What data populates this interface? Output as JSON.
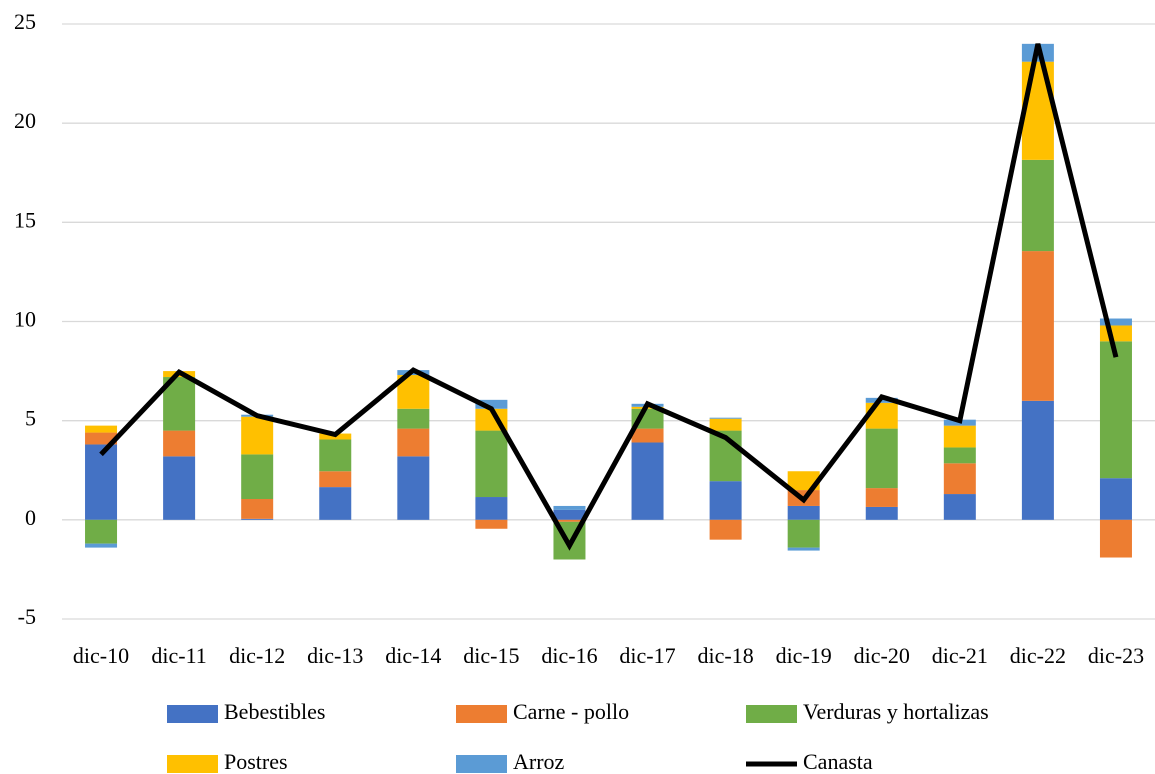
{
  "chart_data": {
    "type": "bar",
    "stacked": true,
    "grid": true,
    "categories": [
      "dic-10",
      "dic-11",
      "dic-12",
      "dic-13",
      "dic-14",
      "dic-15",
      "dic-16",
      "dic-17",
      "dic-18",
      "dic-19",
      "dic-20",
      "dic-21",
      "dic-22",
      "dic-23"
    ],
    "series": [
      {
        "name": "Bebestibles",
        "color": "#4472c4",
        "values": [
          3.8,
          3.2,
          0.05,
          1.65,
          3.2,
          1.15,
          0.5,
          3.9,
          1.95,
          0.7,
          0.65,
          1.3,
          6.0,
          2.1
        ]
      },
      {
        "name": "Carne - pollo",
        "color": "#ed7d31",
        "values": [
          0.6,
          1.3,
          1.0,
          0.8,
          1.4,
          -0.45,
          -0.1,
          0.7,
          -1.0,
          0.8,
          0.95,
          1.55,
          7.55,
          -1.9
        ]
      },
      {
        "name": "Verduras y hortalizas",
        "color": "#70ad47",
        "values": [
          -1.2,
          2.7,
          2.25,
          1.6,
          1.0,
          3.35,
          -1.9,
          1.0,
          2.55,
          -1.4,
          3.0,
          0.8,
          4.6,
          6.9
        ]
      },
      {
        "name": "Postres",
        "color": "#ffc000",
        "values": [
          0.35,
          0.3,
          1.9,
          0.3,
          1.7,
          1.1,
          0,
          0.1,
          0.6,
          0.95,
          1.3,
          1.1,
          4.95,
          0.8
        ]
      },
      {
        "name": "Arroz",
        "color": "#5b9bd5",
        "values": [
          -0.2,
          0,
          0.1,
          0,
          0.25,
          0.45,
          0.2,
          0.15,
          0.05,
          -0.15,
          0.25,
          0.3,
          0.9,
          0.35
        ]
      },
      {
        "name": "Canasta",
        "color": "#000000",
        "type": "line",
        "values": [
          3.3,
          7.45,
          5.25,
          4.3,
          7.55,
          5.6,
          -1.3,
          5.85,
          4.15,
          1.0,
          6.2,
          5.0,
          24.0,
          8.2
        ]
      }
    ],
    "ylim": [
      -5,
      25
    ],
    "yticks": [
      -5,
      0,
      5,
      10,
      15,
      20,
      25
    ]
  }
}
